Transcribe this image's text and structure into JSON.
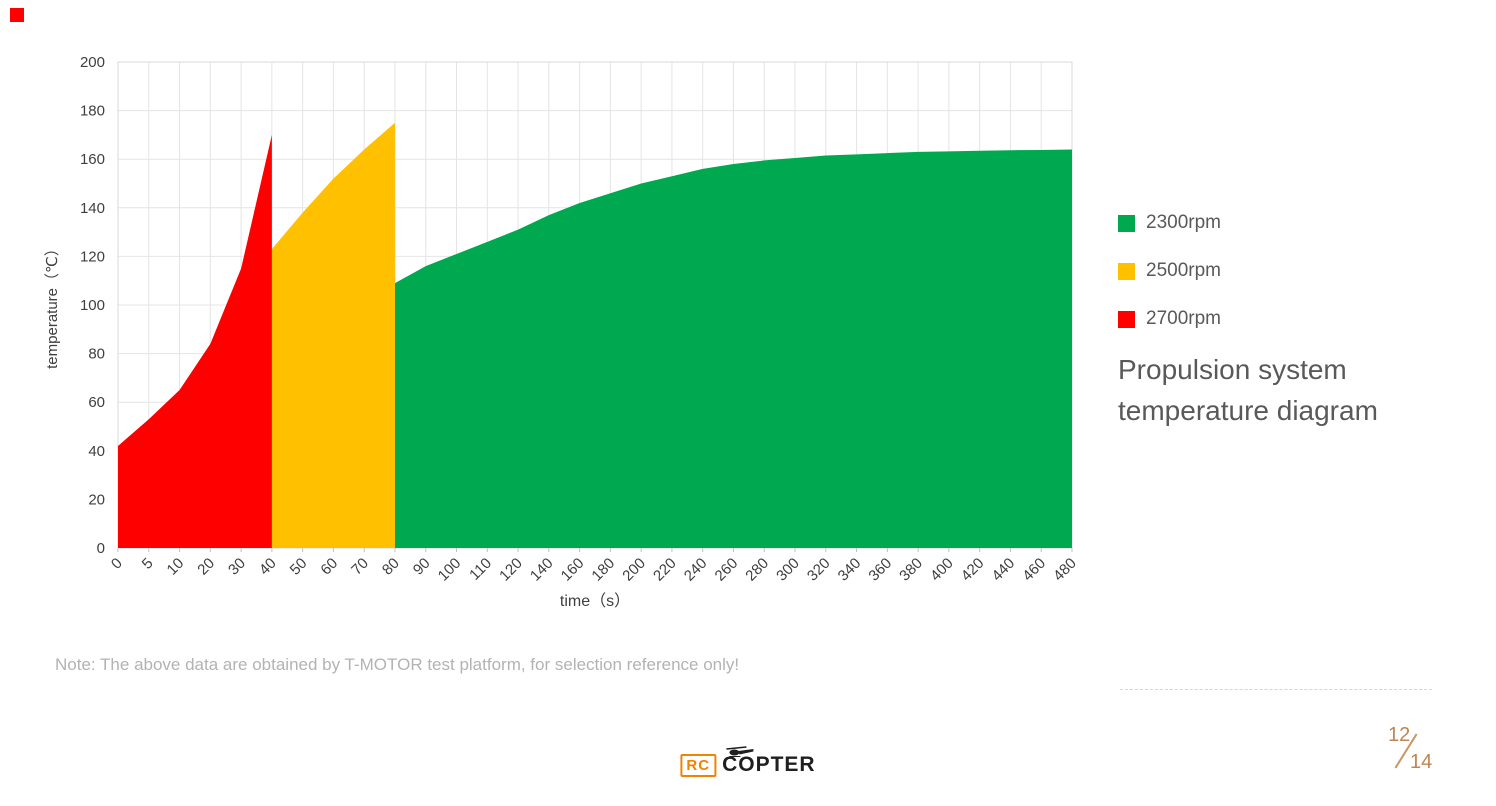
{
  "page": {
    "corner_color": "#fe0000",
    "note": "Note: The above data are obtained by T-MOTOR test platform, for selection reference only!",
    "side_title": "Propulsion system temperature diagram",
    "page_number": {
      "current": "12",
      "total": "14"
    },
    "logo": {
      "rc": "RC",
      "copter": "COPTER"
    }
  },
  "legend": {
    "items": [
      {
        "label": "2300rpm",
        "color": "#00a950"
      },
      {
        "label": "2500rpm",
        "color": "#ffc000"
      },
      {
        "label": "2700rpm",
        "color": "#fe0000"
      }
    ]
  },
  "chart_data": {
    "type": "area",
    "title": "Propulsion system temperature diagram",
    "xlabel": "time（s）",
    "ylabel": "temperature（℃）",
    "ylim": [
      0,
      200
    ],
    "y_tick_step": 20,
    "grid": true,
    "legend_position": "right",
    "categories": [
      "0",
      "5",
      "10",
      "20",
      "30",
      "40",
      "50",
      "60",
      "70",
      "80",
      "90",
      "100",
      "110",
      "120",
      "140",
      "160",
      "180",
      "200",
      "220",
      "240",
      "260",
      "280",
      "300",
      "320",
      "340",
      "360",
      "380",
      "400",
      "420",
      "440",
      "460",
      "480"
    ],
    "series": [
      {
        "name": "2300rpm",
        "color": "#00a950",
        "points": [
          [
            "80",
            109
          ],
          [
            "90",
            116
          ],
          [
            "100",
            121
          ],
          [
            "110",
            126
          ],
          [
            "120",
            131
          ],
          [
            "140",
            137
          ],
          [
            "160",
            142
          ],
          [
            "180",
            146
          ],
          [
            "200",
            150
          ],
          [
            "220",
            153
          ],
          [
            "240",
            156
          ],
          [
            "260",
            158
          ],
          [
            "280",
            159.5
          ],
          [
            "300",
            160.5
          ],
          [
            "320",
            161.5
          ],
          [
            "340",
            162
          ],
          [
            "360",
            162.5
          ],
          [
            "380",
            163
          ],
          [
            "400",
            163.2
          ],
          [
            "420",
            163.5
          ],
          [
            "440",
            163.7
          ],
          [
            "460",
            163.8
          ],
          [
            "480",
            164
          ]
        ]
      },
      {
        "name": "2500rpm",
        "color": "#ffc000",
        "points": [
          [
            "40",
            123
          ],
          [
            "50",
            138
          ],
          [
            "60",
            152
          ],
          [
            "70",
            164
          ],
          [
            "80",
            175
          ]
        ]
      },
      {
        "name": "2700rpm",
        "color": "#fe0000",
        "points": [
          [
            "0",
            42
          ],
          [
            "5",
            53
          ],
          [
            "10",
            65
          ],
          [
            "20",
            84
          ],
          [
            "30",
            115
          ],
          [
            "40",
            170
          ]
        ]
      }
    ]
  }
}
